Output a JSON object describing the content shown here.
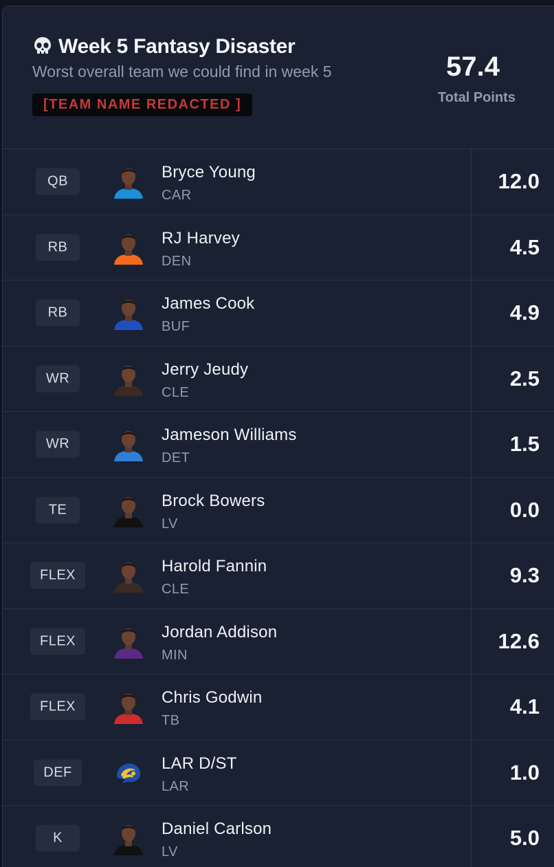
{
  "header": {
    "emoji_icon": "skull-icon",
    "title": "Week 5 Fantasy Disaster",
    "subtitle": "Worst overall team we could find in week 5",
    "team_name": "[TEAM NAME REDACTED ]",
    "total_points": "57.4",
    "total_label": "Total Points"
  },
  "colors": {
    "background": "#1a2132",
    "redacted_text": "#c53a35",
    "muted_text": "#8f9bb0"
  },
  "roster": [
    {
      "pos": "QB",
      "name": "Bryce Young",
      "team": "CAR",
      "points": "12.0",
      "jersey": "#1d8fd8"
    },
    {
      "pos": "RB",
      "name": "RJ Harvey",
      "team": "DEN",
      "points": "4.5",
      "jersey": "#f26b1d"
    },
    {
      "pos": "RB",
      "name": "James Cook",
      "team": "BUF",
      "points": "4.9",
      "jersey": "#1f4fbf"
    },
    {
      "pos": "WR",
      "name": "Jerry Jeudy",
      "team": "CLE",
      "points": "2.5",
      "jersey": "#3a2a22"
    },
    {
      "pos": "WR",
      "name": "Jameson Williams",
      "team": "DET",
      "points": "1.5",
      "jersey": "#2f7fd8"
    },
    {
      "pos": "TE",
      "name": "Brock Bowers",
      "team": "LV",
      "points": "0.0",
      "jersey": "#111111"
    },
    {
      "pos": "FLEX",
      "name": "Harold Fannin",
      "team": "CLE",
      "points": "9.3",
      "jersey": "#3a2a22"
    },
    {
      "pos": "FLEX",
      "name": "Jordan Addison",
      "team": "MIN",
      "points": "12.6",
      "jersey": "#5b2a86"
    },
    {
      "pos": "FLEX",
      "name": "Chris Godwin",
      "team": "TB",
      "points": "4.1",
      "jersey": "#d22b2b"
    },
    {
      "pos": "DEF",
      "name": "LAR D/ST",
      "team": "LAR",
      "points": "1.0",
      "jersey": "#1d4fa8"
    },
    {
      "pos": "K",
      "name": "Daniel Carlson",
      "team": "LV",
      "points": "5.0",
      "jersey": "#111111"
    }
  ]
}
